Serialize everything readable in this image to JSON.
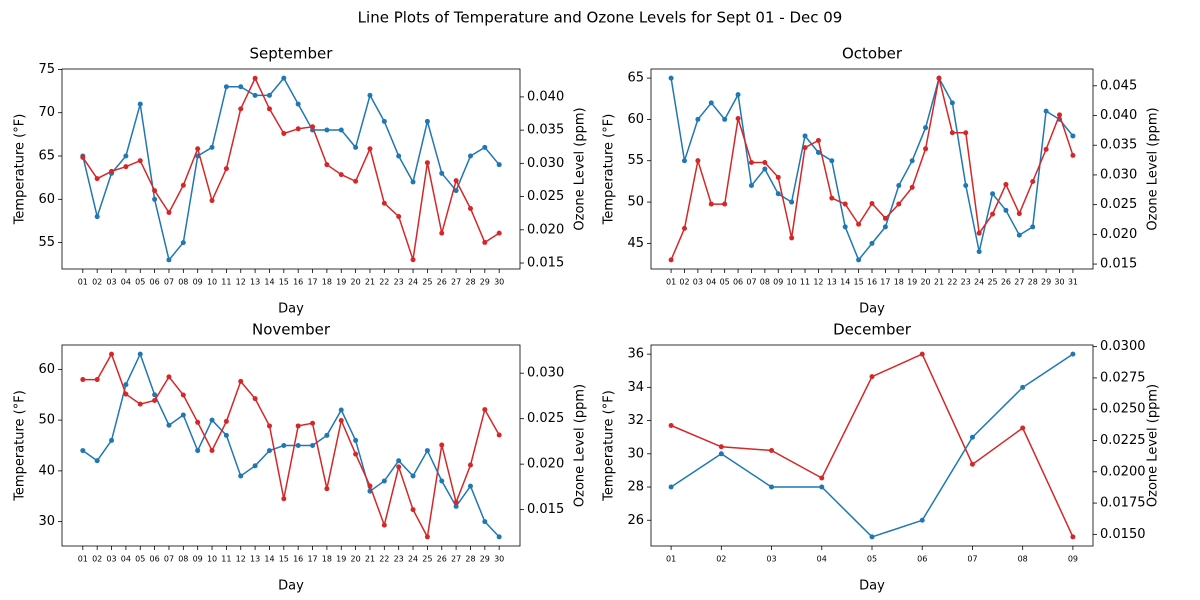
{
  "title": "Line Plots of Temperature and Ozone Levels for Sept 01 - Dec 09",
  "chart_data": [
    {
      "type": "line",
      "title": "September",
      "xlabel": "Day",
      "ylabel": "Temperature (°F)",
      "y2label": "Ozone Level (ppm)",
      "categories": [
        "01",
        "02",
        "03",
        "04",
        "05",
        "06",
        "07",
        "08",
        "09",
        "10",
        "11",
        "12",
        "13",
        "14",
        "15",
        "16",
        "17",
        "18",
        "19",
        "20",
        "21",
        "22",
        "23",
        "24",
        "25",
        "26",
        "27",
        "28",
        "29",
        "30"
      ],
      "series": [
        {
          "color": "#1f77b4",
          "values": [
            65,
            58,
            63,
            65,
            71,
            60,
            53,
            55,
            65,
            66,
            73,
            73,
            72,
            72,
            74,
            71,
            68,
            68,
            68,
            66,
            72,
            69,
            65,
            62,
            69,
            63,
            61,
            65,
            66,
            64
          ]
        },
        {
          "color": "#d62728",
          "axis": "y2",
          "values": [
            0.0309,
            0.0277,
            0.0288,
            0.0295,
            0.0304,
            0.0259,
            0.0226,
            0.0267,
            0.0322,
            0.0244,
            0.0292,
            0.0382,
            0.0428,
            0.0382,
            0.0345,
            0.0352,
            0.0355,
            0.0298,
            0.0283,
            0.0273,
            0.0322,
            0.024,
            0.022,
            0.0155,
            0.0301,
            0.0195,
            0.0274,
            0.0232,
            0.0181,
            0.0195
          ]
        }
      ],
      "ylim": [
        51.95,
        75.05
      ],
      "yticks": [
        55,
        60,
        65,
        70,
        75
      ],
      "y2lim": [
        0.0141,
        0.0442
      ],
      "y2ticks": [
        0.015,
        {
          "value": 0.02,
          "label": "0.020"
        },
        0.025,
        {
          "value": 0.03,
          "label": "0.030"
        },
        0.035,
        {
          "value": 0.04,
          "label": "0.040"
        }
      ]
    },
    {
      "type": "line",
      "title": "October",
      "xlabel": "Day",
      "ylabel": "Temperature (°F)",
      "y2label": "Ozone Level (ppm)",
      "categories": [
        "01",
        "02",
        "03",
        "04",
        "05",
        "06",
        "07",
        "08",
        "09",
        "10",
        "11",
        "12",
        "13",
        "14",
        "15",
        "16",
        "17",
        "18",
        "19",
        "20",
        "21",
        "22",
        "23",
        "24",
        "25",
        "26",
        "27",
        "28",
        "29",
        "30",
        "31"
      ],
      "series": [
        {
          "color": "#1f77b4",
          "values": [
            65,
            55,
            60,
            62,
            60,
            63,
            52,
            54,
            51,
            50,
            58,
            56,
            55,
            47,
            43,
            45,
            47,
            52,
            55,
            59,
            65,
            62,
            52,
            44,
            51,
            49,
            46,
            47,
            61,
            60,
            58
          ]
        },
        {
          "color": "#d62728",
          "axis": "y2",
          "values": [
            0.0157,
            0.021,
            0.0324,
            0.0251,
            0.0251,
            0.0395,
            0.0321,
            0.0321,
            0.0296,
            0.0194,
            0.0346,
            0.0358,
            0.0261,
            0.0251,
            0.0217,
            0.0252,
            0.0227,
            0.0251,
            0.0279,
            0.0344,
            0.0463,
            0.0371,
            0.0371,
            0.0202,
            0.0234,
            0.0284,
            0.0235,
            0.0289,
            0.0343,
            0.0401,
            0.0333
          ]
        }
      ],
      "ylim": [
        41.9,
        66.1
      ],
      "yticks": [
        45,
        50,
        55,
        60,
        65
      ],
      "y2lim": [
        0.01417,
        0.04783
      ],
      "y2ticks": [
        0.015,
        {
          "value": 0.02,
          "label": "0.020"
        },
        0.025,
        {
          "value": 0.03,
          "label": "0.030"
        },
        0.035,
        {
          "value": 0.04,
          "label": "0.040"
        },
        0.045
      ]
    },
    {
      "type": "line",
      "title": "November",
      "xlabel": "Day",
      "ylabel": "Temperature (°F)",
      "y2label": "Ozone Level (ppm)",
      "categories": [
        "01",
        "02",
        "03",
        "04",
        "05",
        "06",
        "07",
        "08",
        "09",
        "10",
        "11",
        "12",
        "13",
        "14",
        "15",
        "16",
        "17",
        "18",
        "19",
        "20",
        "21",
        "22",
        "23",
        "24",
        "25",
        "26",
        "27",
        "28",
        "29",
        "30"
      ],
      "series": [
        {
          "color": "#1f77b4",
          "values": [
            44,
            42,
            46,
            57,
            63,
            55,
            49,
            51,
            44,
            50,
            47,
            39,
            41,
            44,
            45,
            45,
            45,
            47,
            52,
            46,
            36,
            38,
            42,
            39,
            44,
            38,
            33,
            37,
            30,
            27
          ]
        },
        {
          "color": "#d62728",
          "axis": "y2",
          "values": [
            0.0293,
            0.0293,
            0.0321,
            0.0277,
            0.0266,
            0.027,
            0.0296,
            0.0276,
            0.0246,
            0.0215,
            0.0247,
            0.0291,
            0.0272,
            0.0242,
            0.0162,
            0.0242,
            0.0245,
            0.0173,
            0.0248,
            0.0211,
            0.0176,
            0.0133,
            0.0197,
            0.015,
            0.012,
            0.0221,
            0.0158,
            0.0199,
            0.026,
            0.0232
          ]
        }
      ],
      "ylim": [
        25.2,
        64.8
      ],
      "yticks": [
        30,
        40,
        50,
        60
      ],
      "y2lim": [
        0.011,
        0.0331
      ],
      "y2ticks": [
        0.015,
        {
          "value": 0.02,
          "label": "0.020"
        },
        0.025,
        {
          "value": 0.03,
          "label": "0.030"
        }
      ]
    },
    {
      "type": "line",
      "title": "December",
      "xlabel": "Day",
      "ylabel": "Temperature (°F)",
      "y2label": "Ozone Level (ppm)",
      "categories": [
        "01",
        "02",
        "03",
        "04",
        "05",
        "06",
        "07",
        "08",
        "09"
      ],
      "series": [
        {
          "color": "#1f77b4",
          "values": [
            28,
            30,
            28,
            28,
            25,
            26,
            31,
            34,
            36
          ]
        },
        {
          "color": "#d62728",
          "axis": "y2",
          "values": [
            0.0237,
            0.022,
            0.0217,
            0.0195,
            0.0276,
            0.0294,
            0.0206,
            0.0235,
            0.0148
          ]
        }
      ],
      "ylim": [
        24.45,
        36.55
      ],
      "yticks": [
        26,
        28,
        30,
        32,
        34,
        36
      ],
      "y2lim": [
        0.01407,
        0.03013
      ],
      "y2ticks": [
        {
          "value": 0.015,
          "label": "0.0150"
        },
        0.0175,
        {
          "value": 0.02,
          "label": "0.0200"
        },
        0.0225,
        {
          "value": 0.025,
          "label": "0.0250"
        },
        0.0275,
        {
          "value": 0.03,
          "label": "0.0300"
        }
      ]
    }
  ]
}
